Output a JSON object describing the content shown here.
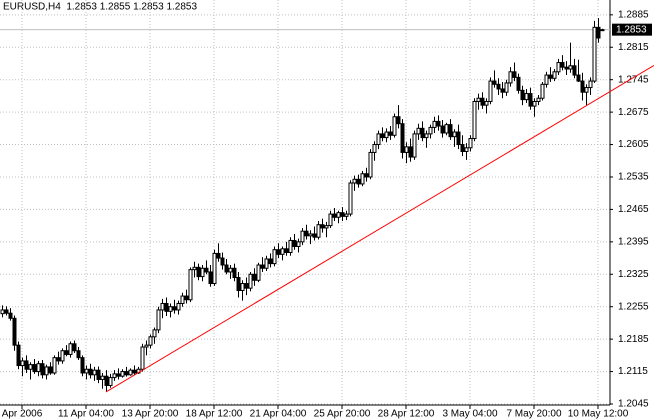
{
  "chart_data": {
    "type": "candlestick",
    "title": "EURUSD,H4  1.2853 1.2855 1.2853 1.2853",
    "xlim": [
      -0.5,
      151.5
    ],
    "xticks": [
      {
        "value": 5,
        "label": "Apr 2006"
      },
      {
        "value": 21,
        "label": "11 Apr 04:00"
      },
      {
        "value": 37,
        "label": "13 Apr 20:00"
      },
      {
        "value": 53,
        "label": "18 Apr 12:00"
      },
      {
        "value": 69,
        "label": "21 Apr 04:00"
      },
      {
        "value": 85,
        "label": "25 Apr 20:00"
      },
      {
        "value": 101,
        "label": "28 Apr 12:00"
      },
      {
        "value": 117,
        "label": "3 May 04:00"
      },
      {
        "value": 133,
        "label": "7 May 20:00"
      },
      {
        "value": 149,
        "label": "10 May 12:00"
      }
    ],
    "ylim": [
      1.2045,
      1.2917
    ],
    "yticks": [
      1.2885,
      1.2815,
      1.2745,
      1.2675,
      1.2605,
      1.2535,
      1.2465,
      1.2395,
      1.2325,
      1.2255,
      1.2185,
      1.2115,
      1.2045
    ],
    "grid": true,
    "grid_color": "#c0c0c0",
    "up_color": "#ffffff",
    "down_color": "#000000",
    "wick_color": "#000000",
    "open": [
      1.224,
      1.2248,
      1.2241,
      1.223,
      1.2172,
      1.2128,
      1.2138,
      1.212,
      1.213,
      1.2115,
      1.2132,
      1.2108,
      1.2125,
      1.2112,
      1.2145,
      1.2138,
      1.216,
      1.2152,
      1.2175,
      1.216,
      1.2145,
      1.2112,
      1.212,
      1.2108,
      1.2118,
      1.2098,
      1.2105,
      1.2085,
      1.2102,
      1.211,
      1.2105,
      1.2115,
      1.2108,
      1.2118,
      1.2112,
      1.212,
      1.2168,
      1.2172,
      1.219,
      1.2205,
      1.2248,
      1.2262,
      1.2245,
      1.2255,
      1.2248,
      1.2262,
      1.2278,
      1.227,
      1.2335,
      1.234,
      1.232,
      1.2338,
      1.233,
      1.2305,
      1.237,
      1.236,
      1.2345,
      1.233,
      1.2338,
      1.2318,
      1.229,
      1.2305,
      1.2295,
      1.2325,
      1.2312,
      1.2345,
      1.2338,
      1.2358,
      1.2348,
      1.2378,
      1.2368,
      1.238,
      1.2372,
      1.2398,
      1.2385,
      1.2395,
      1.2418,
      1.2408,
      1.2412,
      1.2405,
      1.2432,
      1.2425,
      1.243,
      1.2455,
      1.2448,
      1.2458,
      1.245,
      1.2455,
      1.2522,
      1.253,
      1.252,
      1.2542,
      1.2535,
      1.2588,
      1.2605,
      1.2628,
      1.262,
      1.2632,
      1.2625,
      1.2665,
      1.265,
      1.2588,
      1.26,
      1.2578,
      1.2628,
      1.264,
      1.262,
      1.2628,
      1.2642,
      1.2655,
      1.2645,
      1.263,
      1.2648,
      1.2622,
      1.2632,
      1.2605,
      1.259,
      1.2598,
      1.2618,
      1.2698,
      1.2705,
      1.269,
      1.2698,
      1.2742,
      1.2735,
      1.2725,
      1.2718,
      1.2738,
      1.2762,
      1.275,
      1.2722,
      1.2702,
      1.2715,
      1.2688,
      1.2698,
      1.2705,
      1.2735,
      1.2755,
      1.2748,
      1.2762,
      1.2782,
      1.2772,
      1.2768,
      1.2775,
      1.2755,
      1.2742,
      1.2718,
      1.2728,
      1.2742,
      1.2858,
      1.2853
    ],
    "high": [
      1.2258,
      1.2256,
      1.2252,
      1.2236,
      1.218,
      1.2145,
      1.215,
      1.2135,
      1.2142,
      1.2138,
      1.214,
      1.213,
      1.2135,
      1.215,
      1.2158,
      1.2165,
      1.2172,
      1.218,
      1.2182,
      1.2168,
      1.215,
      1.2128,
      1.2132,
      1.2125,
      1.2126,
      1.2112,
      1.2118,
      1.211,
      1.2118,
      1.2122,
      1.212,
      1.2125,
      1.2122,
      1.2128,
      1.2125,
      1.2175,
      1.2182,
      1.2195,
      1.221,
      1.2255,
      1.2272,
      1.2275,
      1.2262,
      1.227,
      1.2268,
      1.2285,
      1.2292,
      1.234,
      1.2352,
      1.2348,
      1.2345,
      1.2355,
      1.2345,
      1.2378,
      1.2392,
      1.2372,
      1.2358,
      1.2345,
      1.2348,
      1.233,
      1.2312,
      1.2318,
      1.233,
      1.2338,
      1.235,
      1.2362,
      1.2365,
      1.237,
      1.2385,
      1.2392,
      1.2385,
      1.2395,
      1.2405,
      1.2412,
      1.2402,
      1.2425,
      1.2432,
      1.242,
      1.2428,
      1.244,
      1.2445,
      1.2438,
      1.2462,
      1.2468,
      1.2462,
      1.247,
      1.2462,
      1.2528,
      1.2538,
      1.254,
      1.2548,
      1.2555,
      1.2595,
      1.2612,
      1.2635,
      1.2642,
      1.264,
      1.2645,
      1.2672,
      1.269,
      1.266,
      1.261,
      1.2618,
      1.2635,
      1.265,
      1.2655,
      1.2635,
      1.2648,
      1.2665,
      1.2668,
      1.2658,
      1.2652,
      1.266,
      1.2638,
      1.2648,
      1.2625,
      1.2608,
      1.2625,
      1.2705,
      1.2715,
      1.2718,
      1.2705,
      1.275,
      1.2765,
      1.2748,
      1.274,
      1.2745,
      1.2772,
      1.2782,
      1.2758,
      1.2732,
      1.2725,
      1.2728,
      1.2705,
      1.2712,
      1.274,
      1.2762,
      1.2772,
      1.2768,
      1.279,
      1.2798,
      1.2785,
      1.2825,
      1.279,
      1.2788,
      1.276,
      1.2735,
      1.275,
      1.2872,
      1.2878,
      1.2855
    ],
    "low": [
      1.2232,
      1.2236,
      1.2225,
      1.216,
      1.212,
      1.2105,
      1.2112,
      1.2098,
      1.211,
      1.2105,
      1.21,
      1.2098,
      1.2108,
      1.2108,
      1.213,
      1.2132,
      1.2148,
      1.2145,
      1.2155,
      1.214,
      1.2105,
      1.2098,
      1.21,
      1.2095,
      1.209,
      1.2078,
      1.2072,
      1.208,
      1.2095,
      1.2098,
      1.2102,
      1.2104,
      1.2106,
      1.2108,
      1.211,
      1.2115,
      1.215,
      1.2165,
      1.2175,
      1.2198,
      1.223,
      1.2235,
      1.2232,
      1.224,
      1.2238,
      1.2255,
      1.2262,
      1.2265,
      1.2318,
      1.2312,
      1.231,
      1.2325,
      1.2298,
      1.23,
      1.2352,
      1.2335,
      1.2325,
      1.2315,
      1.231,
      1.2275,
      1.2268,
      1.228,
      1.2288,
      1.23,
      1.2308,
      1.233,
      1.2332,
      1.234,
      1.2342,
      1.236,
      1.2355,
      1.2365,
      1.2365,
      1.2378,
      1.2372,
      1.2388,
      1.24,
      1.239,
      1.2398,
      1.24,
      1.2415,
      1.2405,
      1.2425,
      1.244,
      1.2435,
      1.244,
      1.2442,
      1.245,
      1.2505,
      1.2512,
      1.2515,
      1.2525,
      1.253,
      1.257,
      1.2595,
      1.2612,
      1.261,
      1.2615,
      1.262,
      1.264,
      1.2575,
      1.2565,
      1.2568,
      1.2572,
      1.2615,
      1.2612,
      1.2598,
      1.2618,
      1.263,
      1.2635,
      1.262,
      1.2625,
      1.2615,
      1.26,
      1.2595,
      1.258,
      1.2572,
      1.259,
      1.2612,
      1.268,
      1.2682,
      1.2672,
      1.2692,
      1.2728,
      1.2712,
      1.2705,
      1.271,
      1.273,
      1.2742,
      1.2715,
      1.269,
      1.2695,
      1.268,
      1.2665,
      1.269,
      1.27,
      1.2728,
      1.274,
      1.2742,
      1.2755,
      1.2765,
      1.2755,
      1.276,
      1.2748,
      1.274,
      1.27,
      1.269,
      1.2712,
      1.2738,
      1.2825,
      1.2853
    ],
    "close": [
      1.2248,
      1.2241,
      1.223,
      1.2172,
      1.2128,
      1.2138,
      1.212,
      1.213,
      1.2115,
      1.2132,
      1.2108,
      1.2125,
      1.2112,
      1.2145,
      1.2138,
      1.216,
      1.2152,
      1.2175,
      1.216,
      1.2145,
      1.2112,
      1.212,
      1.2108,
      1.2118,
      1.2098,
      1.2105,
      1.2085,
      1.2102,
      1.211,
      1.2105,
      1.2115,
      1.2108,
      1.2118,
      1.2112,
      1.212,
      1.2168,
      1.2172,
      1.219,
      1.2205,
      1.2248,
      1.2262,
      1.2245,
      1.2255,
      1.2248,
      1.2262,
      1.2278,
      1.227,
      1.2335,
      1.234,
      1.232,
      1.2338,
      1.233,
      1.2305,
      1.237,
      1.236,
      1.2345,
      1.233,
      1.2338,
      1.2318,
      1.229,
      1.2305,
      1.2295,
      1.2325,
      1.2312,
      1.2345,
      1.2338,
      1.2358,
      1.2348,
      1.2378,
      1.2368,
      1.238,
      1.2372,
      1.2398,
      1.2385,
      1.2395,
      1.2418,
      1.2408,
      1.2412,
      1.2405,
      1.2432,
      1.2425,
      1.243,
      1.2455,
      1.2448,
      1.2458,
      1.245,
      1.2455,
      1.2522,
      1.253,
      1.252,
      1.2542,
      1.2535,
      1.2588,
      1.2605,
      1.2628,
      1.262,
      1.2632,
      1.2625,
      1.2665,
      1.265,
      1.2588,
      1.26,
      1.2578,
      1.2628,
      1.264,
      1.262,
      1.2628,
      1.2642,
      1.2655,
      1.2645,
      1.263,
      1.2648,
      1.2622,
      1.2632,
      1.2605,
      1.259,
      1.2598,
      1.2618,
      1.2698,
      1.2705,
      1.269,
      1.2698,
      1.2742,
      1.2735,
      1.2725,
      1.2718,
      1.2738,
      1.2762,
      1.275,
      1.2722,
      1.2702,
      1.2715,
      1.2688,
      1.2698,
      1.2705,
      1.2735,
      1.2755,
      1.2748,
      1.2762,
      1.2782,
      1.2772,
      1.2768,
      1.2775,
      1.2755,
      1.2742,
      1.2718,
      1.2728,
      1.2742,
      1.2858,
      1.2835,
      1.2853
    ],
    "trendline": {
      "color": "#ff0000",
      "x": [
        26,
        150
      ],
      "values": [
        1.2071,
        1.2709
      ]
    }
  }
}
